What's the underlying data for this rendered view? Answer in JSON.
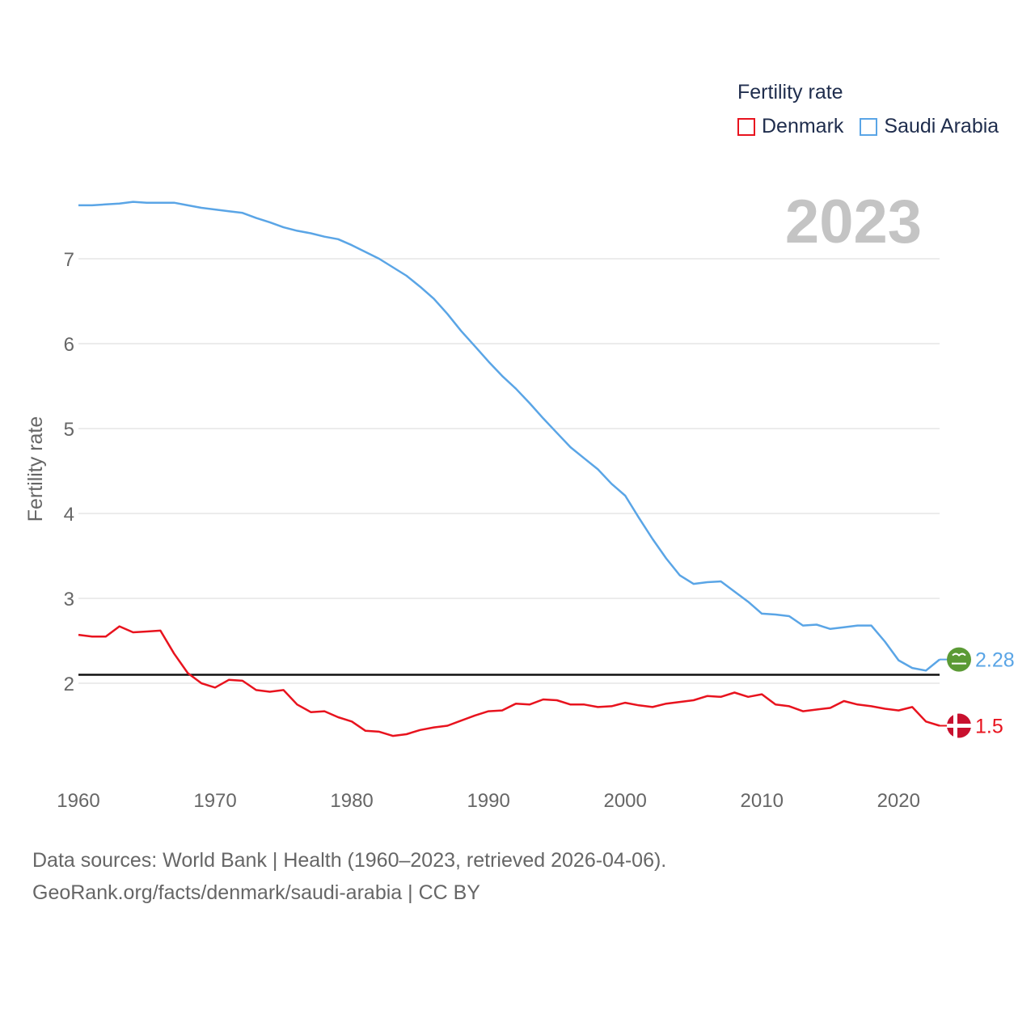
{
  "chart_data": {
    "type": "line",
    "title": "Fertility rate",
    "ylabel": "Fertility rate",
    "xlabel": "",
    "year_label": "2023",
    "xlim": [
      1960,
      2023
    ],
    "ylim": [
      1,
      8
    ],
    "x_ticks": [
      1960,
      1970,
      1980,
      1990,
      2000,
      2010,
      2020
    ],
    "y_ticks": [
      2,
      3,
      4,
      5,
      6,
      7
    ],
    "reference_line": 2.1,
    "series": [
      {
        "name": "Denmark",
        "color": "#e8131e",
        "end_label": "1.5",
        "flag": "denmark-flag",
        "values": [
          2.57,
          2.55,
          2.55,
          2.67,
          2.6,
          2.61,
          2.62,
          2.35,
          2.12,
          2.0,
          1.95,
          2.04,
          2.03,
          1.92,
          1.9,
          1.92,
          1.75,
          1.66,
          1.67,
          1.6,
          1.55,
          1.44,
          1.43,
          1.38,
          1.4,
          1.45,
          1.48,
          1.5,
          1.56,
          1.62,
          1.67,
          1.68,
          1.76,
          1.75,
          1.81,
          1.8,
          1.75,
          1.75,
          1.72,
          1.73,
          1.77,
          1.74,
          1.72,
          1.76,
          1.78,
          1.8,
          1.85,
          1.84,
          1.89,
          1.84,
          1.87,
          1.75,
          1.73,
          1.67,
          1.69,
          1.71,
          1.79,
          1.75,
          1.73,
          1.7,
          1.68,
          1.72,
          1.55,
          1.5
        ]
      },
      {
        "name": "Saudi Arabia",
        "color": "#5aa5e6",
        "end_label": "2.28",
        "flag": "saudi-arabia-flag",
        "values": [
          7.63,
          7.63,
          7.64,
          7.65,
          7.67,
          7.66,
          7.66,
          7.66,
          7.63,
          7.6,
          7.58,
          7.56,
          7.54,
          7.48,
          7.43,
          7.37,
          7.33,
          7.3,
          7.26,
          7.23,
          7.16,
          7.08,
          7.0,
          6.9,
          6.8,
          6.67,
          6.53,
          6.35,
          6.15,
          5.97,
          5.79,
          5.62,
          5.47,
          5.3,
          5.12,
          4.95,
          4.78,
          4.65,
          4.52,
          4.35,
          4.21,
          3.95,
          3.7,
          3.47,
          3.27,
          3.17,
          3.19,
          3.2,
          3.08,
          2.96,
          2.82,
          2.81,
          2.79,
          2.68,
          2.69,
          2.64,
          2.66,
          2.68,
          2.68,
          2.49,
          2.27,
          2.18,
          2.15,
          2.28
        ]
      }
    ]
  },
  "footer": {
    "line1": "Data sources: World Bank | Health (1960–2023, retrieved 2026-04-06).",
    "line2": "GeoRank.org/facts/denmark/saudi-arabia | CC BY"
  }
}
